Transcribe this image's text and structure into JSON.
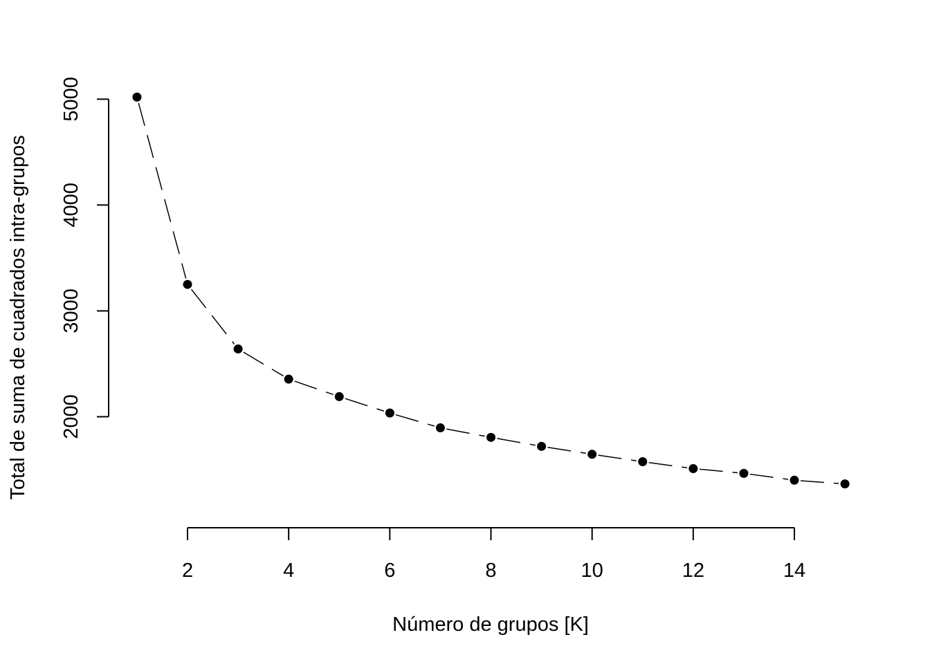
{
  "chart_data": {
    "type": "line",
    "title": "",
    "xlabel": "Número de grupos [K]",
    "ylabel": "Total de suma de cuadrados intra-grupos",
    "x": [
      1,
      2,
      3,
      4,
      5,
      6,
      7,
      8,
      9,
      10,
      11,
      12,
      13,
      14,
      15
    ],
    "series": [
      {
        "values": [
          5020,
          3250,
          2640,
          2355,
          2190,
          2035,
          1895,
          1805,
          1720,
          1645,
          1575,
          1510,
          1465,
          1400,
          1365
        ]
      }
    ],
    "xticks": [
      2,
      4,
      6,
      8,
      10,
      12,
      14
    ],
    "xtick_labels": [
      "2",
      "4",
      "6",
      "8",
      "10",
      "12",
      "14"
    ],
    "yticks": [
      2000,
      3000,
      4000,
      5000
    ],
    "ytick_labels": [
      "2000",
      "3000",
      "4000",
      "5000"
    ],
    "xlim": [
      0.44,
      15.56
    ],
    "ylim": [
      1219,
      5166
    ],
    "line_style": "dashed",
    "marker": "filled-circle",
    "grid": false,
    "legend": "none",
    "colors": {
      "line": "#000000",
      "marker": "#000000",
      "background": "#ffffff"
    }
  }
}
